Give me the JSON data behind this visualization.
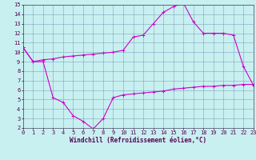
{
  "xlabel": "Windchill (Refroidissement éolien,°C)",
  "xlim": [
    0,
    23
  ],
  "ylim": [
    2,
    15
  ],
  "xticks": [
    0,
    1,
    2,
    3,
    4,
    5,
    6,
    7,
    8,
    9,
    10,
    11,
    12,
    13,
    14,
    15,
    16,
    17,
    18,
    19,
    20,
    21,
    22,
    23
  ],
  "yticks": [
    2,
    3,
    4,
    5,
    6,
    7,
    8,
    9,
    10,
    11,
    12,
    13,
    14,
    15
  ],
  "bg_color": "#c8f0f0",
  "grid_color": "#7090b0",
  "line_color": "#cc00cc",
  "line1_x": [
    0,
    1,
    2,
    3,
    4,
    5,
    6,
    7,
    8,
    9,
    10,
    11,
    12,
    13,
    14,
    15,
    16,
    17,
    18,
    19,
    20,
    21,
    22,
    23
  ],
  "line1_y": [
    10.5,
    9.0,
    9.0,
    5.2,
    4.7,
    3.3,
    2.7,
    1.9,
    3.0,
    5.2,
    5.5,
    5.6,
    5.7,
    5.8,
    5.9,
    6.1,
    6.2,
    6.3,
    6.4,
    6.4,
    6.5,
    6.5,
    6.6,
    6.6
  ],
  "line2_x": [
    0,
    1,
    2,
    3,
    4,
    5,
    6,
    7,
    8,
    9,
    10,
    11,
    12,
    13,
    14,
    15,
    16,
    17,
    18,
    19,
    20,
    21,
    22,
    23
  ],
  "line2_y": [
    10.5,
    9.0,
    9.2,
    9.3,
    9.5,
    9.6,
    9.7,
    9.8,
    9.9,
    10.0,
    10.2,
    11.6,
    11.8,
    13.0,
    14.2,
    14.8,
    15.2,
    13.2,
    12.0,
    12.0,
    12.0,
    11.8,
    8.5,
    6.5
  ],
  "xlabel_fontsize": 5.5,
  "tick_fontsize": 5.0,
  "line_width": 0.8,
  "marker_size": 2.5
}
